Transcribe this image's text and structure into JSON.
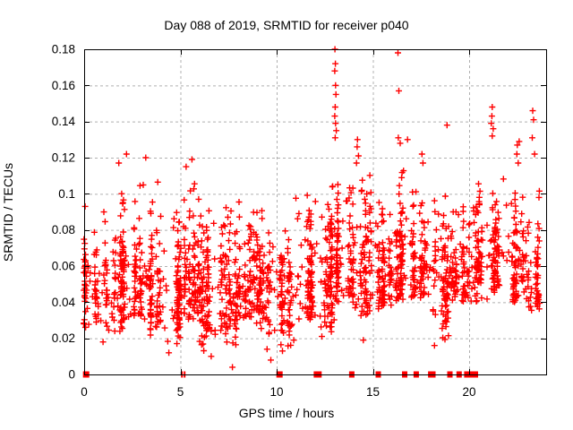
{
  "window": {
    "background": "#ffffff"
  },
  "chart_data": {
    "type": "scatter",
    "title": "Day 088 of 2019, SRMTID for receiver p040",
    "xlabel": "GPS time / hours",
    "ylabel": "SRMTID / TECUs",
    "xlim": [
      0,
      24
    ],
    "ylim": [
      0,
      0.18
    ],
    "xticks": [
      0,
      5,
      10,
      15,
      20
    ],
    "xtick_labels": [
      "0",
      "5",
      "10",
      "15",
      "20"
    ],
    "yticks": [
      0,
      0.02,
      0.04,
      0.06,
      0.08,
      0.1,
      0.12,
      0.14,
      0.16,
      0.18
    ],
    "ytick_labels": [
      "0",
      "0.02",
      "0.04",
      "0.06",
      "0.08",
      "0.1",
      "0.12",
      "0.14",
      "0.16",
      "0.18"
    ],
    "grid": {
      "show": true,
      "color": "#b0b0b0",
      "dash": "3,3"
    },
    "frame_color": "#000000",
    "marker": {
      "shape": "plus",
      "color": "#ff0000",
      "size": 7,
      "stroke_width": 1.4
    },
    "legend": "none",
    "seed": 12345,
    "bin_format": [
      "x_start_hours",
      "x_end_hours",
      "point_count",
      "y_min",
      "y_peak",
      "y_max"
    ],
    "bins": [
      [
        0.02,
        1.0,
        70,
        0.025,
        0.045,
        0.098
      ],
      [
        1.0,
        2.0,
        90,
        0.018,
        0.05,
        0.108
      ],
      [
        2.0,
        3.0,
        95,
        0.03,
        0.052,
        0.115
      ],
      [
        3.0,
        4.0,
        85,
        0.02,
        0.048,
        0.108
      ],
      [
        4.0,
        5.0,
        80,
        0.015,
        0.045,
        0.096
      ],
      [
        5.0,
        6.0,
        100,
        0.03,
        0.05,
        0.112
      ],
      [
        6.0,
        7.0,
        90,
        0.012,
        0.045,
        0.1
      ],
      [
        7.0,
        8.0,
        100,
        0.015,
        0.045,
        0.096
      ],
      [
        8.0,
        9.0,
        90,
        0.03,
        0.05,
        0.1
      ],
      [
        9.0,
        10.0,
        90,
        0.01,
        0.05,
        0.1
      ],
      [
        10.0,
        11.0,
        80,
        0.013,
        0.045,
        0.1
      ],
      [
        11.0,
        12.0,
        90,
        0.03,
        0.05,
        0.105
      ],
      [
        12.0,
        13.0,
        95,
        0.02,
        0.055,
        0.108
      ],
      [
        13.0,
        14.0,
        100,
        0.04,
        0.06,
        0.125
      ],
      [
        14.0,
        15.0,
        85,
        0.03,
        0.06,
        0.118
      ],
      [
        15.0,
        16.0,
        85,
        0.035,
        0.055,
        0.1
      ],
      [
        16.0,
        17.0,
        85,
        0.04,
        0.06,
        0.115
      ],
      [
        17.0,
        18.0,
        90,
        0.04,
        0.06,
        0.118
      ],
      [
        18.0,
        19.0,
        85,
        0.016,
        0.055,
        0.11
      ],
      [
        19.0,
        20.0,
        85,
        0.04,
        0.055,
        0.112
      ],
      [
        20.0,
        21.0,
        75,
        0.04,
        0.06,
        0.11
      ],
      [
        21.0,
        22.0,
        80,
        0.045,
        0.065,
        0.118
      ],
      [
        22.0,
        23.0,
        80,
        0.04,
        0.06,
        0.112
      ],
      [
        23.0,
        23.7,
        60,
        0.035,
        0.055,
        0.115
      ]
    ],
    "high_points": [
      [
        0.05,
        0.093
      ],
      [
        1.8,
        0.117
      ],
      [
        2.2,
        0.122
      ],
      [
        3.2,
        0.12
      ],
      [
        5.3,
        0.115
      ],
      [
        5.6,
        0.119
      ],
      [
        13.03,
        0.18
      ],
      [
        13.05,
        0.172
      ],
      [
        13.02,
        0.168
      ],
      [
        13.06,
        0.16
      ],
      [
        13.08,
        0.155
      ],
      [
        13.04,
        0.148
      ],
      [
        13.02,
        0.143
      ],
      [
        13.06,
        0.139
      ],
      [
        13.1,
        0.135
      ],
      [
        13.04,
        0.131
      ],
      [
        14.2,
        0.13
      ],
      [
        14.18,
        0.126
      ],
      [
        14.25,
        0.121
      ],
      [
        14.15,
        0.117
      ],
      [
        16.3,
        0.178
      ],
      [
        16.35,
        0.157
      ],
      [
        16.32,
        0.131
      ],
      [
        16.42,
        0.128
      ],
      [
        16.8,
        0.13
      ],
      [
        17.55,
        0.122
      ],
      [
        17.6,
        0.117
      ],
      [
        18.85,
        0.138
      ],
      [
        21.2,
        0.148
      ],
      [
        21.18,
        0.143
      ],
      [
        21.15,
        0.139
      ],
      [
        21.25,
        0.136
      ],
      [
        21.2,
        0.132
      ],
      [
        22.5,
        0.127
      ],
      [
        22.48,
        0.122
      ],
      [
        22.55,
        0.117
      ],
      [
        22.6,
        0.129
      ],
      [
        23.3,
        0.146
      ],
      [
        23.35,
        0.141
      ],
      [
        23.28,
        0.131
      ],
      [
        23.4,
        0.122
      ]
    ],
    "low_points": [
      [
        0.98,
        0.018
      ],
      [
        4.4,
        0.012
      ],
      [
        6.6,
        0.01
      ],
      [
        7.7,
        0.004
      ],
      [
        9.5,
        0.014
      ],
      [
        9.7,
        0.008
      ],
      [
        10.3,
        0.013
      ],
      [
        12.35,
        0.021
      ],
      [
        14.5,
        0.019
      ],
      [
        18.2,
        0.016
      ]
    ],
    "zero_marker_format": [
      "x_hours",
      "pixel_width"
    ],
    "zero_markers": [
      [
        0.1,
        7
      ],
      [
        5.08,
        2
      ],
      [
        5.22,
        2
      ],
      [
        10.15,
        7
      ],
      [
        11.97,
        2
      ],
      [
        12.05,
        2
      ],
      [
        12.2,
        6
      ],
      [
        13.9,
        6
      ],
      [
        15.28,
        6
      ],
      [
        16.65,
        6
      ],
      [
        17.25,
        6
      ],
      [
        17.98,
        5
      ],
      [
        18.14,
        5
      ],
      [
        19.0,
        6
      ],
      [
        19.48,
        6
      ],
      [
        19.88,
        6
      ],
      [
        20.05,
        7
      ],
      [
        20.3,
        7
      ]
    ]
  }
}
